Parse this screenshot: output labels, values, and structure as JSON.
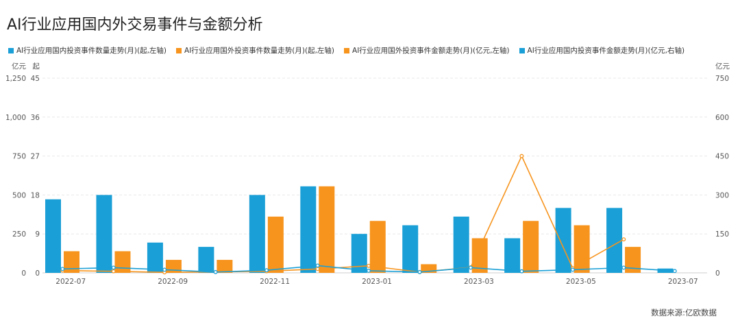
{
  "title": "AI行业应用国内外交易事件与金额分析",
  "source": "数据来源:亿欧数据",
  "axes": {
    "left_outer_unit": "亿元",
    "left_inner_unit": "起",
    "right_unit": "亿元",
    "left_outer_ticks": [
      "0",
      "250",
      "500",
      "750",
      "1,000",
      "1,250"
    ],
    "left_inner_ticks": [
      "0",
      "9",
      "18",
      "27",
      "36",
      "45"
    ],
    "right_ticks": [
      "0",
      "150",
      "300",
      "450",
      "600",
      "750"
    ],
    "x_tick_labels": [
      "2022-07",
      "2022-09",
      "2022-11",
      "2023-01",
      "2023-03",
      "2023-05",
      "2023-07"
    ]
  },
  "colors": {
    "domestic": "#1a9fd6",
    "foreign": "#f7941d"
  },
  "chart_data": {
    "type": "bar",
    "categories": [
      "2022-07",
      "2022-08",
      "2022-09",
      "2022-10",
      "2022-11",
      "2022-12",
      "2023-01",
      "2023-02",
      "2023-03",
      "2023-04",
      "2023-05",
      "2023-06",
      "2023-07"
    ],
    "series": [
      {
        "name": "AI行业应用国内投资事件数量走势(月)(起,左轴)",
        "type": "bar",
        "axis": "left-count",
        "values": [
          17,
          18,
          7,
          6,
          18,
          20,
          9,
          11,
          13,
          8,
          15,
          15,
          1
        ]
      },
      {
        "name": "AI行业应用国外投资事件数量走势(月)(起,左轴)",
        "type": "bar",
        "axis": "left-count",
        "values": [
          5,
          5,
          3,
          3,
          13,
          20,
          12,
          2,
          8,
          12,
          11,
          6,
          null
        ]
      },
      {
        "name": "AI行业应用国外投资事件金额走势(月)(亿元,左轴)",
        "type": "line",
        "axis": "left-amount",
        "values": [
          15,
          10,
          3,
          null,
          10,
          25,
          45,
          5,
          35,
          750,
          30,
          215,
          null
        ]
      },
      {
        "name": "AI行业应用国内投资事件金额走势(月)(亿元,右轴)",
        "type": "line",
        "axis": "right-amount",
        "values": [
          15,
          20,
          12,
          3,
          10,
          28,
          8,
          3,
          20,
          6,
          12,
          20,
          7
        ]
      }
    ],
    "ylim_left_amount": [
      0,
      1250
    ],
    "ylim_left_count": [
      0,
      45
    ],
    "ylim_right_amount": [
      0,
      750
    ],
    "grid": true,
    "legend": "top-left"
  }
}
